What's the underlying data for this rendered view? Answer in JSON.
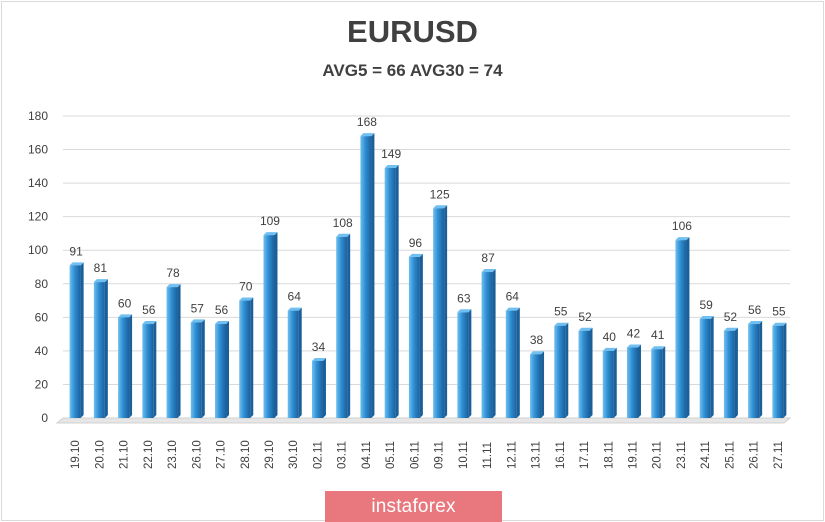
{
  "chart_data": {
    "type": "bar",
    "title": "EURUSD",
    "subtitle": "AVG5 = 66 AVG30 = 74",
    "categories": [
      "19.10",
      "20.10",
      "21.10",
      "22.10",
      "23.10",
      "26.10",
      "27.10",
      "28.10",
      "29.10",
      "30.10",
      "02.11",
      "03.11",
      "04.11",
      "05.11",
      "06.11",
      "09.11",
      "10.11",
      "11.11",
      "12.11",
      "13.11",
      "16.11",
      "17.11",
      "18.11",
      "19.11",
      "20.11",
      "23.11",
      "24.11",
      "25.11",
      "26.11",
      "27.11"
    ],
    "values": [
      91,
      81,
      60,
      56,
      78,
      57,
      56,
      70,
      109,
      64,
      34,
      108,
      168,
      149,
      96,
      125,
      63,
      87,
      64,
      38,
      55,
      52,
      40,
      42,
      41,
      106,
      59,
      52,
      56,
      55
    ],
    "ylim": [
      0,
      180
    ],
    "yticks": [
      0,
      20,
      40,
      60,
      80,
      100,
      120,
      140,
      160,
      180
    ],
    "xlabel": "",
    "ylabel": "",
    "grid": true,
    "legend": "none",
    "bar_color": "#2e8ed3",
    "bar_shade": "#1b5f9a",
    "bar_highlight": "#6fbff0"
  },
  "watermark": {
    "text": "instaforex"
  }
}
